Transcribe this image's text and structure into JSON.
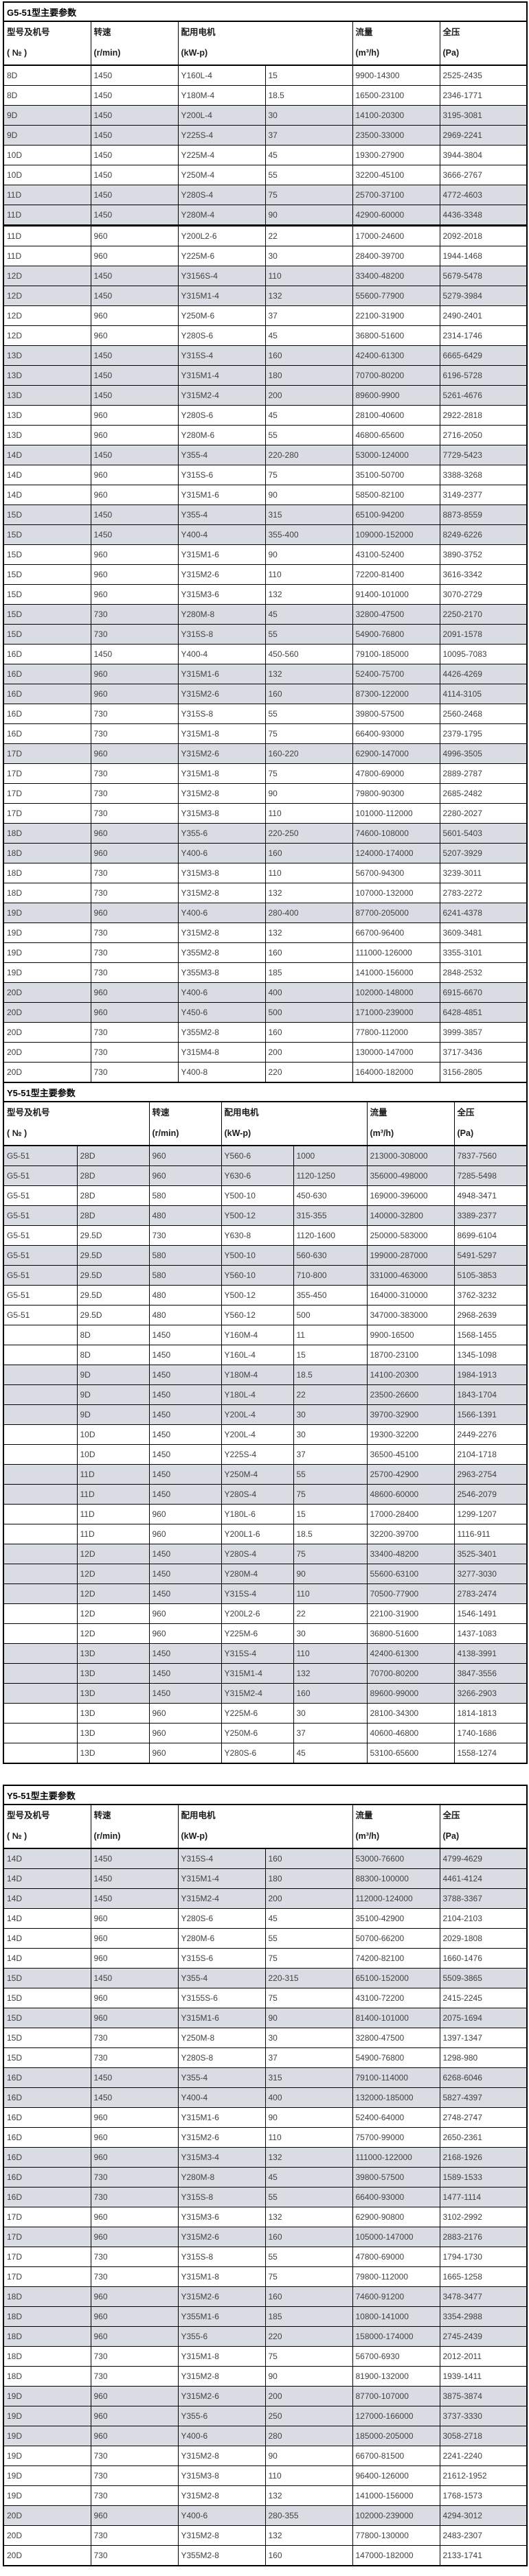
{
  "colors": {
    "background": "#ffffff",
    "border": "#000000",
    "shaded_row": "#d9dce3",
    "text": "#404040",
    "title_text": "#000000"
  },
  "header": {
    "model_no_line1": "型号及机号",
    "model_no_line2": "( № )",
    "speed_line1": "转速",
    "speed_line2": "(r/min)",
    "motor_line1": "配用电机",
    "motor_line2": "(kW-p)",
    "flow_line1": "流量",
    "flow_line2": "(m³/h)",
    "pressure_line1": "全压",
    "pressure_line2": "(Pa)"
  },
  "tables": [
    {
      "title": "G5-51型主要参数",
      "columns": 6,
      "rows": [
        [
          "8D",
          "1450",
          "Y160L-4",
          "15",
          "9900-14300",
          "2525-2435",
          0
        ],
        [
          "8D",
          "1450",
          "Y180M-4",
          "18.5",
          "16500-23100",
          "2346-1771",
          0
        ],
        [
          "9D",
          "1450",
          "Y200L-4",
          "30",
          "14100-20300",
          "3195-3081",
          1
        ],
        [
          "9D",
          "1450",
          "Y225S-4",
          "37",
          "23500-33000",
          "2969-2241",
          1
        ],
        [
          "10D",
          "1450",
          "Y225M-4",
          "45",
          "19300-27900",
          "3944-3804",
          0
        ],
        [
          "10D",
          "1450",
          "Y250M-4",
          "55",
          "32200-45100",
          "3666-2767",
          0
        ],
        [
          "11D",
          "1450",
          "Y280S-4",
          "75",
          "25700-37100",
          "4772-4603",
          1
        ],
        [
          "11D",
          "1450",
          "Y280M-4",
          "90",
          "42900-60000",
          "4436-3348",
          3
        ],
        [
          "11D",
          "960",
          "Y200L2-6",
          "22",
          "17000-24600",
          "2092-2018",
          0
        ],
        [
          "11D",
          "960",
          "Y225M-6",
          "30",
          "28400-39700",
          "1944-1468",
          0
        ],
        [
          "12D",
          "1450",
          "Y3156S-4",
          "110",
          "33400-48200",
          "5679-5478",
          1
        ],
        [
          "12D",
          "1450",
          "Y315M1-4",
          "132",
          "55600-77900",
          "5279-3984",
          1
        ],
        [
          "12D",
          "960",
          "Y250M-6",
          "37",
          "22100-31900",
          "2490-2401",
          0
        ],
        [
          "12D",
          "960",
          "Y280S-6",
          "45",
          "36800-51600",
          "2314-1746",
          0
        ],
        [
          "13D",
          "1450",
          "Y315S-4",
          "160",
          "42400-61300",
          "6665-6429",
          1
        ],
        [
          "13D",
          "1450",
          "Y315M1-4",
          "180",
          "70700-80200",
          "6196-5728",
          1
        ],
        [
          "13D",
          "1450",
          "Y315M2-4",
          "200",
          "89600-9900",
          "5261-4676",
          1
        ],
        [
          "13D",
          "960",
          "Y280S-6",
          "45",
          "28100-40600",
          "2922-2818",
          0
        ],
        [
          "13D",
          "960",
          "Y280M-6",
          "55",
          "46800-65600",
          "2716-2050",
          0
        ],
        [
          "14D",
          "1450",
          "Y355-4",
          "220-280",
          "53000-124000",
          "7729-5423",
          1
        ],
        [
          "14D",
          "960",
          "Y315S-6",
          "75",
          "35100-50700",
          "3388-3268",
          0
        ],
        [
          "14D",
          "960",
          "Y315M1-6",
          "90",
          "58500-82100",
          "3149-2377",
          0
        ],
        [
          "15D",
          "1450",
          "Y355-4",
          "315",
          "65100-94200",
          "8873-8559",
          1
        ],
        [
          "15D",
          "1450",
          "Y400-4",
          "355-400",
          "109000-152000",
          "8249-6226",
          1
        ],
        [
          "15D",
          "960",
          "Y315M1-6",
          "90",
          "43100-52400",
          "3890-3752",
          0
        ],
        [
          "15D",
          "960",
          "Y315M2-6",
          "110",
          "72200-81400",
          "3616-3342",
          0
        ],
        [
          "15D",
          "960",
          "Y315M3-6",
          "132",
          "91400-101000",
          "3070-2729",
          0
        ],
        [
          "15D",
          "730",
          "Y280M-8",
          "45",
          "32800-47500",
          "2250-2170",
          1
        ],
        [
          "15D",
          "730",
          "Y315S-8",
          "55",
          "54900-76800",
          "2091-1578",
          1
        ],
        [
          "16D",
          "1450",
          "Y400-4",
          "450-560",
          "79100-185000",
          "10095-7083",
          0
        ],
        [
          "16D",
          "960",
          "Y315M1-6",
          "132",
          "52400-75700",
          "4426-4269",
          1
        ],
        [
          "16D",
          "960",
          "Y315M2-6",
          "160",
          "87300-122000",
          "4114-3105",
          1
        ],
        [
          "16D",
          "730",
          "Y315S-8",
          "55",
          "39800-57500",
          "2560-2468",
          0
        ],
        [
          "16D",
          "730",
          "Y315M1-8",
          "75",
          "66400-93000",
          "2379-1795",
          0
        ],
        [
          "17D",
          "960",
          "Y315M2-6",
          "160-220",
          "62900-147000",
          "4996-3505",
          1
        ],
        [
          "17D",
          "730",
          "Y315M1-8",
          "75",
          "47800-69000",
          "2889-2787",
          0
        ],
        [
          "17D",
          "730",
          "Y315M2-8",
          "90",
          "79800-90300",
          "2685-2482",
          0
        ],
        [
          "17D",
          "730",
          "Y315M3-8",
          "110",
          "101000-112000",
          "2280-2027",
          0
        ],
        [
          "18D",
          "960",
          "Y355-6",
          "220-250",
          "74600-108000",
          "5601-5403",
          1
        ],
        [
          "18D",
          "960",
          "Y400-6",
          "160",
          "124000-174000",
          "5207-3929",
          1
        ],
        [
          "18D",
          "730",
          "Y315M3-8",
          "110",
          "56700-94300",
          "3239-3011",
          0
        ],
        [
          "18D",
          "730",
          "Y315M2-8",
          "132",
          "107000-132000",
          "2783-2272",
          0
        ],
        [
          "19D",
          "960",
          "Y400-6",
          "280-400",
          "87700-205000",
          "6241-4378",
          1
        ],
        [
          "19D",
          "730",
          "Y315M2-8",
          "132",
          "66700-96400",
          "3609-3481",
          0
        ],
        [
          "19D",
          "730",
          "Y355M2-8",
          "160",
          "111000-126000",
          "3355-3101",
          0
        ],
        [
          "19D",
          "730",
          "Y355M3-8",
          "185",
          "141000-156000",
          "2848-2532",
          0
        ],
        [
          "20D",
          "960",
          "Y400-6",
          "400",
          "102000-148000",
          "6915-6670",
          1
        ],
        [
          "20D",
          "960",
          "Y450-6",
          "500",
          "171000-239000",
          "6428-4851",
          1
        ],
        [
          "20D",
          "730",
          "Y355M2-8",
          "160",
          "77800-112000",
          "3999-3857",
          0
        ],
        [
          "20D",
          "730",
          "Y315M4-8",
          "200",
          "130000-147000",
          "3717-3436",
          0
        ],
        [
          "20D",
          "730",
          "Y400-8",
          "220",
          "164000-182000",
          "3156-2805",
          0
        ]
      ]
    },
    {
      "title": "Y5-51型主要参数",
      "columns": 7,
      "rows": [
        [
          "G5-51",
          "28D",
          "960",
          "Y560-6",
          "1000",
          "213000-308000",
          "7837-7560",
          1
        ],
        [
          "G5-51",
          "28D",
          "960",
          "Y630-6",
          "1120-1250",
          "356000-498000",
          "7285-5498",
          1
        ],
        [
          "G5-51",
          "28D",
          "580",
          "Y500-10",
          "450-630",
          "169000-396000",
          "4948-3471",
          0
        ],
        [
          "G5-51",
          "28D",
          "480",
          "Y500-12",
          "315-355",
          "140000-32800",
          "3389-2377",
          1
        ],
        [
          "G5-51",
          "29.5D",
          "730",
          "Y630-8",
          "1120-1600",
          "250000-583000",
          "8699-6104",
          0
        ],
        [
          "G5-51",
          "29.5D",
          "580",
          "Y500-10",
          "560-630",
          "199000-287000",
          "5491-5297",
          1
        ],
        [
          "G5-51",
          "29.5D",
          "580",
          "Y560-10",
          "710-800",
          "331000-463000",
          "5105-3853",
          1
        ],
        [
          "G5-51",
          "29.5D",
          "480",
          "Y500-12",
          "355-450",
          "164000-310000",
          "3762-3232",
          0
        ],
        [
          "G5-51",
          "29.5D",
          "480",
          "Y560-12",
          "500",
          "347000-383000",
          "2968-2639",
          0
        ],
        [
          "",
          "8D",
          "1450",
          "Y160M-4",
          "11",
          "9900-16500",
          "1568-1455",
          0
        ],
        [
          "",
          "8D",
          "1450",
          "Y160L-4",
          "15",
          "18700-23100",
          "1345-1098",
          0
        ],
        [
          "",
          "9D",
          "1450",
          "Y180M-4",
          "18.5",
          "14100-20300",
          "1984-1913",
          1
        ],
        [
          "",
          "9D",
          "1450",
          "Y180L-4",
          "22",
          "23500-26600",
          "1843-1704",
          1
        ],
        [
          "",
          "9D",
          "1450",
          "Y200L-4",
          "30",
          "39700-32900",
          "1566-1391",
          1
        ],
        [
          "",
          "10D",
          "1450",
          "Y200L-4",
          "30",
          "19300-32200",
          "2449-2276",
          0
        ],
        [
          "",
          "10D",
          "1450",
          "Y225S-4",
          "37",
          "36500-45100",
          "2104-1718",
          0
        ],
        [
          "",
          "11D",
          "1450",
          "Y250M-4",
          "55",
          "25700-42900",
          "2963-2754",
          1
        ],
        [
          "",
          "11D",
          "1450",
          "Y280S-4",
          "75",
          "48600-60000",
          "2546-2079",
          1
        ],
        [
          "",
          "11D",
          "960",
          "Y180L-6",
          "15",
          "17000-28400",
          "1299-1207",
          0
        ],
        [
          "",
          "11D",
          "960",
          "Y200L1-6",
          "18.5",
          "32200-39700",
          "1116-911",
          0
        ],
        [
          "",
          "12D",
          "1450",
          "Y280S-4",
          "75",
          "33400-48200",
          "3525-3401",
          1
        ],
        [
          "",
          "12D",
          "1450",
          "Y280M-4",
          "90",
          "55600-63100",
          "3277-3030",
          1
        ],
        [
          "",
          "12D",
          "1450",
          "Y315S-4",
          "110",
          "70500-77900",
          "2783-2474",
          1
        ],
        [
          "",
          "12D",
          "960",
          "Y200L2-6",
          "22",
          "22100-31900",
          "1546-1491",
          0
        ],
        [
          "",
          "12D",
          "960",
          "Y225M-6",
          "30",
          "36800-51600",
          "1437-1083",
          0
        ],
        [
          "",
          "13D",
          "1450",
          "Y315S-4",
          "110",
          "42400-61300",
          "4138-3991",
          1
        ],
        [
          "",
          "13D",
          "1450",
          "Y315M1-4",
          "132",
          "70700-80200",
          "3847-3556",
          1
        ],
        [
          "",
          "13D",
          "1450",
          "Y315M2-4",
          "160",
          "89600-99000",
          "3266-2903",
          1
        ],
        [
          "",
          "13D",
          "960",
          "Y225M-6",
          "30",
          "28100-34300",
          "1814-1813",
          0
        ],
        [
          "",
          "13D",
          "960",
          "Y250M-6",
          "37",
          "40600-46800",
          "1740-1686",
          0
        ],
        [
          "",
          "13D",
          "960",
          "Y280S-6",
          "45",
          "53100-65600",
          "1558-1274",
          0
        ]
      ]
    },
    {
      "title": "Y5-51型主要参数",
      "columns": 6,
      "rows": [
        [
          "14D",
          "1450",
          "Y315S-4",
          "160",
          "53000-76600",
          "4799-4629",
          1
        ],
        [
          "14D",
          "1450",
          "Y315M1-4",
          "180",
          "88300-100000",
          "4461-4124",
          1
        ],
        [
          "14D",
          "1450",
          "Y315M2-4",
          "200",
          "112000-124000",
          "3788-3367",
          1
        ],
        [
          "14D",
          "960",
          "Y280S-6",
          "45",
          "35100-42900",
          "2104-2103",
          0
        ],
        [
          "14D",
          "960",
          "Y280M-6",
          "55",
          "50700-66200",
          "2029-1808",
          0
        ],
        [
          "14D",
          "960",
          "Y315S-6",
          "75",
          "74200-82100",
          "1660-1476",
          0
        ],
        [
          "15D",
          "1450",
          "Y355-4",
          "220-315",
          "65100-152000",
          "5509-3865",
          1
        ],
        [
          "15D",
          "960",
          "Y3155S-6",
          "75",
          "43100-72200",
          "2415-2245",
          0
        ],
        [
          "15D",
          "960",
          "Y315M1-6",
          "90",
          "81400-101000",
          "2075-1694",
          1
        ],
        [
          "15D",
          "730",
          "Y250M-8",
          "30",
          "32800-47500",
          "1397-1347",
          0
        ],
        [
          "15D",
          "730",
          "Y280S-8",
          "37",
          "54900-76800",
          "1298-980",
          0
        ],
        [
          "16D",
          "1450",
          "Y355-4",
          "315",
          "79100-114000",
          "6268-6046",
          1
        ],
        [
          "16D",
          "1450",
          "Y400-4",
          "400",
          "132000-185000",
          "5827-4397",
          1
        ],
        [
          "16D",
          "960",
          "Y315M1-6",
          "90",
          "52400-64000",
          "2748-2747",
          0
        ],
        [
          "16D",
          "960",
          "Y315M2-6",
          "110",
          "75700-99000",
          "2650-2361",
          0
        ],
        [
          "16D",
          "960",
          "Y315M3-4",
          "132",
          "111000-122000",
          "2168-1926",
          1
        ],
        [
          "16D",
          "730",
          "Y280M-8",
          "45",
          "39800-57500",
          "1589-1533",
          1
        ],
        [
          "16D",
          "730",
          "Y315S-8",
          "55",
          "66400-93000",
          "1477-1114",
          1
        ],
        [
          "17D",
          "960",
          "Y315M3-6",
          "132",
          "62900-90800",
          "3102-2992",
          0
        ],
        [
          "17D",
          "960",
          "Y315M2-6",
          "160",
          "105000-147000",
          "2883-2176",
          1
        ],
        [
          "17D",
          "730",
          "Y315S-8",
          "55",
          "47800-69000",
          "1794-1730",
          0
        ],
        [
          "17D",
          "730",
          "Y315M1-8",
          "75",
          "79800-112000",
          "1665-1258",
          0
        ],
        [
          "18D",
          "960",
          "Y315M2-6",
          "160",
          "74600-91200",
          "3478-3477",
          1
        ],
        [
          "18D",
          "960",
          "Y355M1-6",
          "185",
          "10800-141000",
          "3354-2988",
          1
        ],
        [
          "18D",
          "960",
          "Y355-6",
          "220",
          "158000-174000",
          "2745-2439",
          1
        ],
        [
          "18D",
          "730",
          "Y315M1-8",
          "75",
          "56700-6930",
          "2012-2011",
          0
        ],
        [
          "18D",
          "730",
          "Y315M2-8",
          "90",
          "81900-132000",
          "1939-1411",
          0
        ],
        [
          "19D",
          "960",
          "Y315M2-6",
          "200",
          "87700-107000",
          "3875-3874",
          1
        ],
        [
          "19D",
          "960",
          "Y355-6",
          "250",
          "127000-166000",
          "3737-3330",
          1
        ],
        [
          "19D",
          "960",
          "Y400-6",
          "280",
          "185000-205000",
          "3058-2718",
          1
        ],
        [
          "19D",
          "730",
          "Y315M2-8",
          "90",
          "66700-81500",
          "2241-2240",
          0
        ],
        [
          "19D",
          "730",
          "Y315M3-8",
          "110",
          "96400-126000",
          "21612-1952",
          0
        ],
        [
          "19D",
          "730",
          "Y315M2-8",
          "132",
          "141000-156000",
          "1768-1573",
          0
        ],
        [
          "20D",
          "960",
          "Y400-6",
          "280-355",
          "102000-239000",
          "4294-3012",
          1
        ],
        [
          "20D",
          "730",
          "Y315M2-8",
          "132",
          "77800-130000",
          "2483-2307",
          0
        ],
        [
          "20D",
          "730",
          "Y355M2-8",
          "160",
          "147000-182000",
          "2133-1741",
          0
        ]
      ]
    }
  ]
}
